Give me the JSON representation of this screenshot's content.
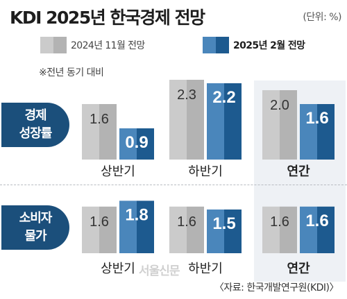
{
  "title": "KDI 2025년 한국경제 전망",
  "unit": "(단위: %)",
  "legend": [
    {
      "label": "2024년 11월 전망",
      "color_light": "#cbcbcb",
      "color_dark": "#b3b3b3"
    },
    {
      "label": "2025년 2월 전망",
      "color_light": "#4a86bb",
      "color_dark": "#1d5a8f"
    }
  ],
  "note": "※전년 동기 대비",
  "source": "〈자료: 한국개발연구원(KDI)〉",
  "watermark": "서울신문",
  "chart_data": {
    "type": "bar",
    "series_names": [
      "2024년 11월 전망",
      "2025년 2월 전망"
    ],
    "groups": [
      {
        "name": "경제 성장률",
        "label_lines": [
          "경제",
          "성장률"
        ],
        "categories": [
          "상반기",
          "하반기",
          "연간"
        ],
        "series": [
          {
            "name": "2024년 11월 전망",
            "values": [
              1.6,
              2.3,
              2.0
            ]
          },
          {
            "name": "2025년 2월 전망",
            "values": [
              0.9,
              2.2,
              1.6
            ]
          }
        ]
      },
      {
        "name": "소비자 물가",
        "label_lines": [
          "소비자",
          "물가"
        ],
        "categories": [
          "상반기",
          "하반기",
          "연간"
        ],
        "series": [
          {
            "name": "2024년 11월 전망",
            "values": [
              1.6,
              1.6,
              1.6
            ]
          },
          {
            "name": "2025년 2월 전망",
            "values": [
              1.8,
              1.5,
              1.6
            ]
          }
        ]
      }
    ],
    "highlight_category": "연간"
  }
}
